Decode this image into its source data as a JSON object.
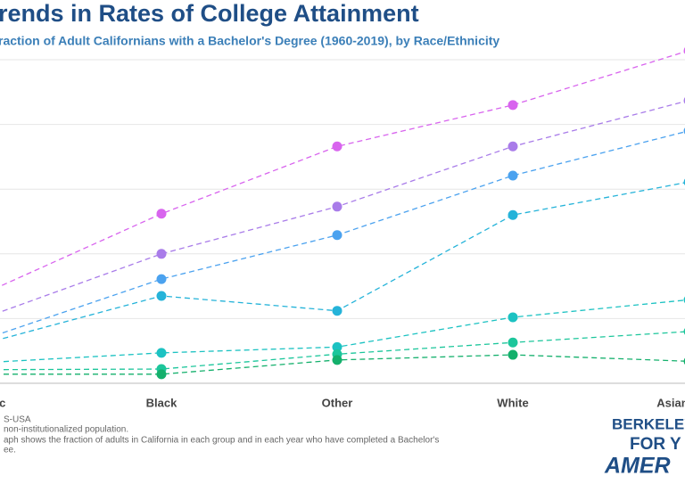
{
  "chart_data": {
    "type": "line",
    "title": "rends in Rates of College Attainment",
    "subtitle": "raction of Adult Californians with a Bachelor's Degree (1960-2019), by Race/Ethnicity",
    "categories": [
      "ispanic",
      "Black",
      "Other",
      "White",
      "Asian or Pa"
    ],
    "series": [
      {
        "color": "#d864ee",
        "values": [
          14.0,
          26.2,
          36.6,
          43.0,
          51.4
        ]
      },
      {
        "color": "#a97ce9",
        "values": [
          10.2,
          20.0,
          27.3,
          36.6,
          43.7
        ]
      },
      {
        "color": "#4ba2ef",
        "values": [
          6.9,
          16.1,
          22.9,
          32.1,
          39.0
        ]
      },
      {
        "color": "#25b3d9",
        "values": [
          6.2,
          13.5,
          11.2,
          26.0,
          31.1
        ]
      },
      {
        "color": "#1cc2c2",
        "values": [
          3.2,
          4.7,
          5.6,
          10.2,
          12.9
        ]
      },
      {
        "color": "#1cc69b",
        "values": [
          2.1,
          2.2,
          4.5,
          6.3,
          8.0
        ]
      },
      {
        "color": "#14b06c",
        "values": [
          1.4,
          1.4,
          3.6,
          4.4,
          3.4
        ]
      }
    ],
    "ylim": [
      0,
      50
    ],
    "yticks": [
      0,
      10,
      20,
      30,
      40,
      50
    ],
    "grid": true,
    "notes": [
      "S-USA",
      "non-institutionalized population.",
      "aph shows the fraction of adults in California in each group and in each year who have completed a Bachelor's",
      "ee."
    ],
    "logo": [
      "BERKELEY",
      "FOR Y",
      "AMER"
    ]
  }
}
